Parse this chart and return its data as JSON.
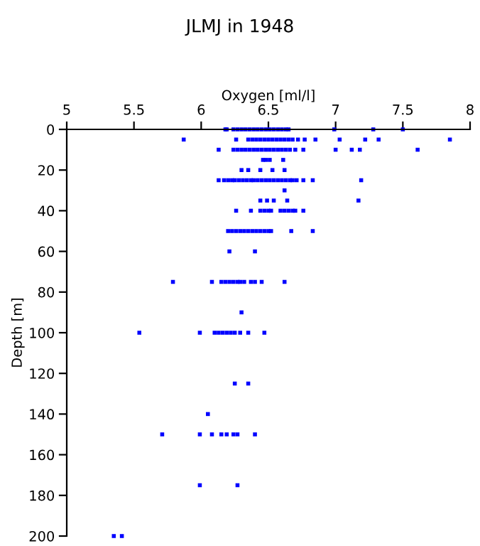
{
  "chart_data": {
    "type": "scatter",
    "title": "JLMJ in 1948",
    "xlabel": "Oxygen [ml/l]",
    "ylabel": "Depth [m]",
    "xlim": [
      5,
      8
    ],
    "xticks": [
      5,
      5.5,
      6,
      6.5,
      7,
      7.5,
      8
    ],
    "ylim": [
      200,
      0
    ],
    "yticks": [
      0,
      20,
      40,
      60,
      80,
      100,
      120,
      140,
      160,
      180,
      200
    ],
    "marker": "square",
    "grid": false,
    "series": [
      {
        "color": "#0000ff",
        "x": [
          6.18,
          6.19,
          6.24,
          6.27,
          6.3,
          6.33,
          6.36,
          6.39,
          6.42,
          6.45,
          6.48,
          6.51,
          6.54,
          6.57,
          6.6,
          6.63,
          6.65,
          6.99,
          7.28,
          7.5,
          5.87,
          6.26,
          6.35,
          6.38,
          6.41,
          6.44,
          6.47,
          6.5,
          6.53,
          6.56,
          6.59,
          6.62,
          6.65,
          6.68,
          6.72,
          6.77,
          6.85,
          7.03,
          7.22,
          7.32,
          7.85,
          6.13,
          6.24,
          6.27,
          6.3,
          6.33,
          6.36,
          6.39,
          6.42,
          6.45,
          6.48,
          6.51,
          6.54,
          6.57,
          6.6,
          6.63,
          6.66,
          6.7,
          6.76,
          7.0,
          7.12,
          7.18,
          7.61,
          6.46,
          6.48,
          6.51,
          6.61,
          6.3,
          6.35,
          6.44,
          6.53,
          6.62,
          6.13,
          6.17,
          6.2,
          6.23,
          6.25,
          6.28,
          6.31,
          6.34,
          6.37,
          6.39,
          6.42,
          6.45,
          6.48,
          6.51,
          6.54,
          6.57,
          6.6,
          6.63,
          6.66,
          6.68,
          6.71,
          6.76,
          6.83,
          7.19,
          6.62,
          6.44,
          6.49,
          6.54,
          6.64,
          7.17,
          6.26,
          6.37,
          6.44,
          6.47,
          6.5,
          6.52,
          6.59,
          6.62,
          6.65,
          6.68,
          6.7,
          6.76,
          6.2,
          6.23,
          6.26,
          6.29,
          6.32,
          6.35,
          6.38,
          6.41,
          6.44,
          6.47,
          6.5,
          6.52,
          6.67,
          6.83,
          6.21,
          6.4,
          5.79,
          6.08,
          6.15,
          6.18,
          6.21,
          6.24,
          6.27,
          6.29,
          6.32,
          6.37,
          6.4,
          6.45,
          6.62,
          6.3,
          5.54,
          5.99,
          6.1,
          6.13,
          6.16,
          6.19,
          6.22,
          6.25,
          6.29,
          6.35,
          6.47,
          6.25,
          6.35,
          6.05,
          5.71,
          5.99,
          6.08,
          6.15,
          6.19,
          6.24,
          6.27,
          6.4,
          5.99,
          6.27,
          5.35,
          5.41
        ],
        "values": [
          0,
          0,
          0,
          0,
          0,
          0,
          0,
          0,
          0,
          0,
          0,
          0,
          0,
          0,
          0,
          0,
          0,
          0,
          0,
          0,
          5,
          5,
          5,
          5,
          5,
          5,
          5,
          5,
          5,
          5,
          5,
          5,
          5,
          5,
          5,
          5,
          5,
          5,
          5,
          5,
          5,
          10,
          10,
          10,
          10,
          10,
          10,
          10,
          10,
          10,
          10,
          10,
          10,
          10,
          10,
          10,
          10,
          10,
          10,
          10,
          10,
          10,
          10,
          15,
          15,
          15,
          15,
          20,
          20,
          20,
          20,
          20,
          25,
          25,
          25,
          25,
          25,
          25,
          25,
          25,
          25,
          25,
          25,
          25,
          25,
          25,
          25,
          25,
          25,
          25,
          25,
          25,
          25,
          25,
          25,
          25,
          30,
          35,
          35,
          35,
          35,
          35,
          40,
          40,
          40,
          40,
          40,
          40,
          40,
          40,
          40,
          40,
          40,
          40,
          50,
          50,
          50,
          50,
          50,
          50,
          50,
          50,
          50,
          50,
          50,
          50,
          50,
          50,
          60,
          60,
          75,
          75,
          75,
          75,
          75,
          75,
          75,
          75,
          75,
          75,
          75,
          75,
          75,
          90,
          100,
          100,
          100,
          100,
          100,
          100,
          100,
          100,
          100,
          100,
          100,
          125,
          125,
          140,
          150,
          150,
          150,
          150,
          150,
          150,
          150,
          150,
          175,
          175,
          200,
          200
        ]
      }
    ]
  }
}
